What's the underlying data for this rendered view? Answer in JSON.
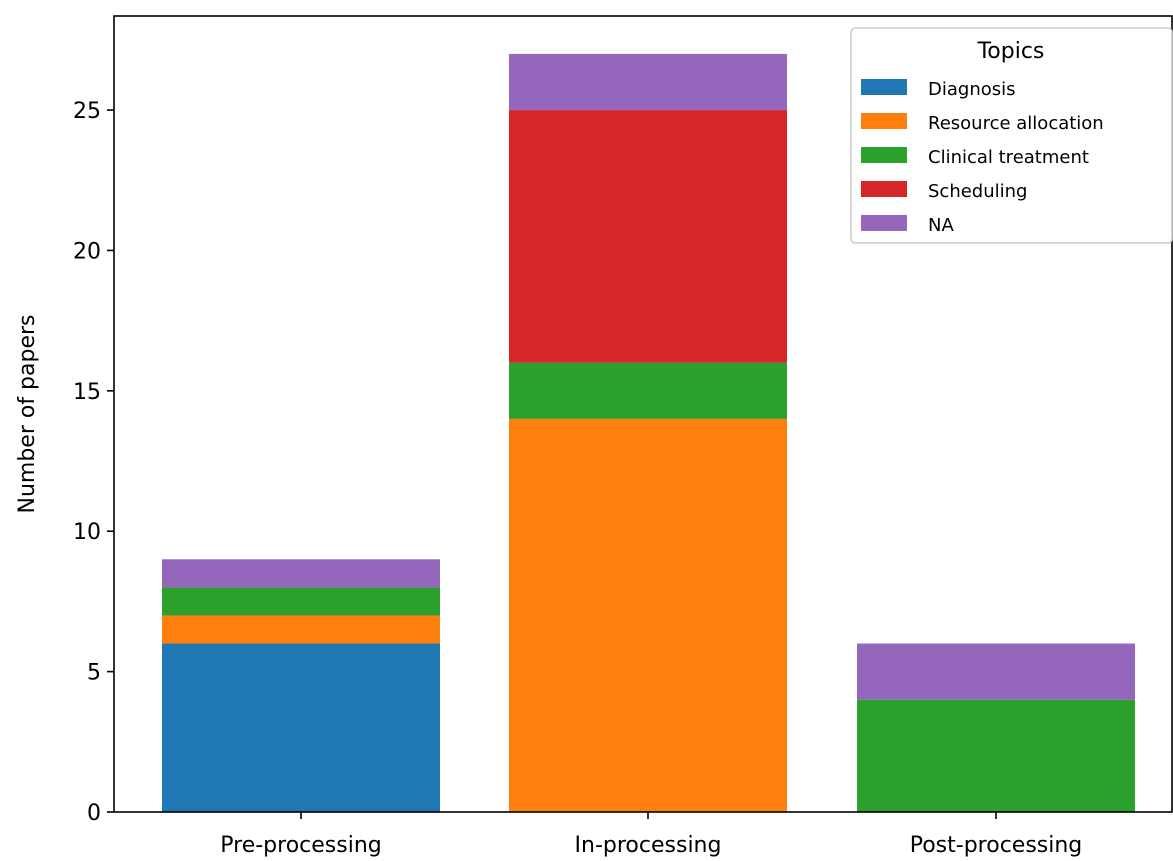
{
  "chart_data": {
    "type": "bar",
    "stacked": true,
    "categories": [
      "Pre-processing",
      "In-processing",
      "Post-processing"
    ],
    "series": [
      {
        "name": "Diagnosis",
        "values": [
          6,
          0,
          0
        ],
        "color": "#1f77b4"
      },
      {
        "name": "Resource allocation",
        "values": [
          1,
          14,
          0
        ],
        "color": "#ff7f0e"
      },
      {
        "name": "Clinical treatment",
        "values": [
          1,
          2,
          4
        ],
        "color": "#2ca02c"
      },
      {
        "name": "Scheduling",
        "values": [
          0,
          9,
          0
        ],
        "color": "#d62728"
      },
      {
        "name": "NA",
        "values": [
          1,
          2,
          2
        ],
        "color": "#9467bd"
      }
    ],
    "title": "",
    "xlabel": "",
    "ylabel": "Number of papers",
    "ylim": [
      0,
      28.35
    ],
    "yticks": [
      0,
      5,
      10,
      15,
      20,
      25
    ],
    "grid": false,
    "legend": {
      "title": "Topics",
      "placement": "top-right"
    }
  }
}
